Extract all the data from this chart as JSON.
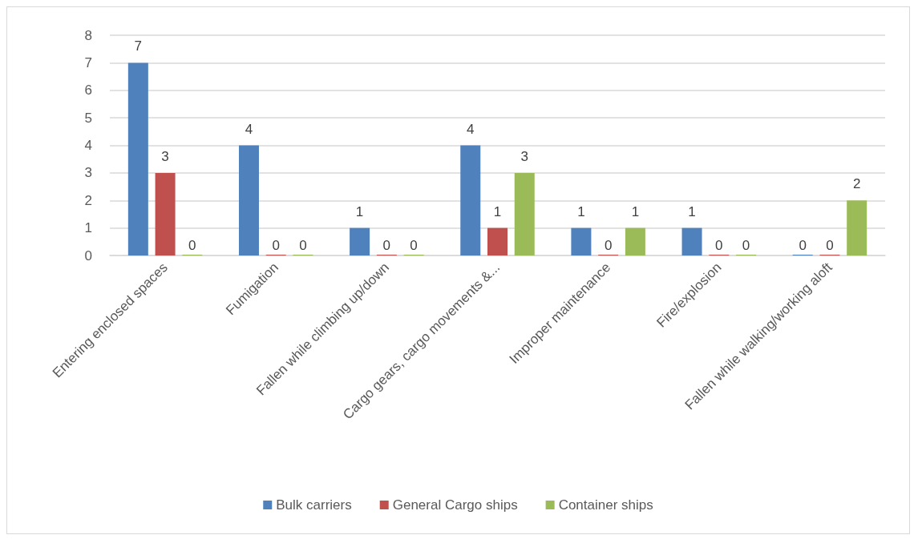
{
  "chart_data": {
    "type": "bar",
    "categories": [
      "Entering enclosed spaces",
      "Fumigation",
      "Fallen while climbing up/down",
      "Cargo gears, cargo movements &...",
      "Improper maintenance",
      "Fire/explosion",
      "Fallen while walking/working aloft"
    ],
    "series": [
      {
        "name": "Bulk carriers",
        "color": "#4f81bd",
        "values": [
          7,
          4,
          1,
          4,
          1,
          1,
          0
        ]
      },
      {
        "name": "General Cargo ships",
        "color": "#c0504d",
        "values": [
          3,
          0,
          0,
          1,
          0,
          0,
          0
        ]
      },
      {
        "name": "Container ships",
        "color": "#9bbb59",
        "values": [
          0,
          0,
          0,
          3,
          1,
          0,
          2
        ]
      }
    ],
    "ylim": [
      0,
      8
    ],
    "yticks": [
      0,
      1,
      2,
      3,
      4,
      5,
      6,
      7,
      8
    ],
    "grid": "y",
    "legend": "bottom",
    "data_labels": true
  }
}
